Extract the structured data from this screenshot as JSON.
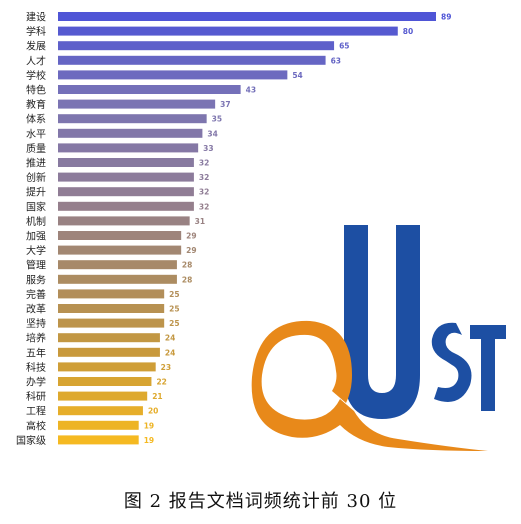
{
  "chart_data": {
    "type": "bar",
    "orientation": "horizontal",
    "title": "图 2   报告文档词频统计前 30 位",
    "xlabel": "",
    "ylabel": "",
    "xlim": [
      0,
      89
    ],
    "grid": false,
    "legend": "none",
    "categories": [
      "建设",
      "学科",
      "发展",
      "人才",
      "学校",
      "特色",
      "教育",
      "体系",
      "水平",
      "质量",
      "推进",
      "创新",
      "提升",
      "国家",
      "机制",
      "加强",
      "大学",
      "管理",
      "服务",
      "完善",
      "改革",
      "坚持",
      "培养",
      "五年",
      "科技",
      "办学",
      "科研",
      "工程",
      "高校",
      "国家级"
    ],
    "values": [
      89,
      80,
      65,
      63,
      54,
      43,
      37,
      35,
      34,
      33,
      32,
      32,
      32,
      32,
      31,
      29,
      29,
      28,
      28,
      25,
      25,
      25,
      24,
      24,
      23,
      22,
      21,
      20,
      19,
      19
    ],
    "color_gradient": [
      "#4f55d6",
      "#7a74b4",
      "#8e7c98",
      "#a98a66",
      "#c99a3a",
      "#f5b921"
    ]
  },
  "logo": {
    "text": "QUST",
    "colors": {
      "blue": "#1d4fa3",
      "orange": "#e8891a"
    }
  }
}
